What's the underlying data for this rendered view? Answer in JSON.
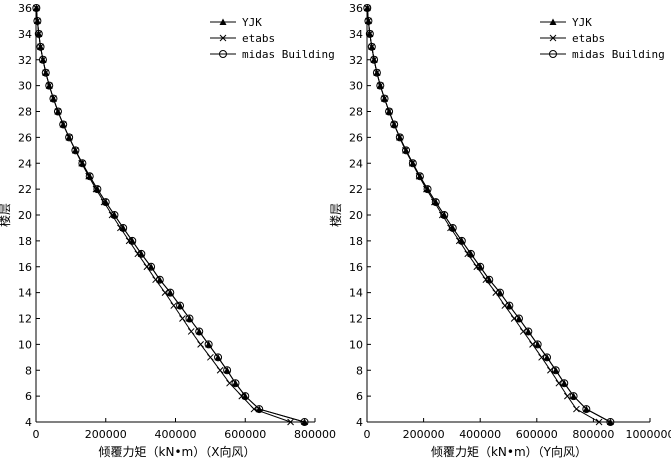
{
  "chart_data": [
    {
      "type": "line",
      "xlabel": "倾覆力矩（kN•m）（X向风）",
      "ylabel": "楼层",
      "xlim": [
        0,
        800000
      ],
      "ylim": [
        4,
        36
      ],
      "xticks": [
        "0",
        "200000",
        "400000",
        "600000",
        "800000"
      ],
      "yticks": [
        "4",
        "6",
        "8",
        "10",
        "12",
        "14",
        "16",
        "18",
        "20",
        "22",
        "24",
        "26",
        "28",
        "30",
        "32",
        "34",
        "36"
      ],
      "legend_position": "top-right",
      "grid": false,
      "y": [
        36,
        35,
        34,
        33,
        32,
        31,
        30,
        29,
        28,
        27,
        26,
        25,
        24,
        23,
        22,
        21,
        20,
        19,
        18,
        17,
        16,
        15,
        14,
        13,
        12,
        11,
        10,
        9,
        8,
        7,
        6,
        5,
        4
      ],
      "series": [
        {
          "name": "YJK",
          "marker": "triangle",
          "x": [
            1000,
            4000,
            8000,
            13000,
            20000,
            28000,
            38000,
            50000,
            63000,
            78000,
            95000,
            113000,
            133000,
            154000,
            176000,
            200000,
            225000,
            250000,
            276000,
            302000,
            330000,
            355000,
            385000,
            413000,
            440000,
            468000,
            495000,
            522000,
            548000,
            572000,
            600000,
            640000,
            770000
          ]
        },
        {
          "name": "etabs",
          "marker": "x",
          "x": [
            1000,
            4000,
            8000,
            13000,
            20000,
            28000,
            38000,
            50000,
            63000,
            78000,
            95000,
            113000,
            131000,
            151000,
            172000,
            195000,
            218000,
            242000,
            267000,
            292000,
            318000,
            343000,
            370000,
            395000,
            420000,
            445000,
            472000,
            500000,
            528000,
            555000,
            590000,
            625000,
            730000
          ]
        },
        {
          "name": "midas Building",
          "marker": "circle",
          "x": [
            1000,
            4000,
            8000,
            13000,
            20000,
            28000,
            38000,
            50000,
            63000,
            78000,
            95000,
            113000,
            133000,
            154000,
            176000,
            200000,
            225000,
            250000,
            276000,
            302000,
            330000,
            355000,
            385000,
            413000,
            440000,
            468000,
            495000,
            522000,
            548000,
            572000,
            600000,
            640000,
            770000
          ]
        }
      ]
    },
    {
      "type": "line",
      "xlabel": "倾覆力矩（kN•m）（Y向风）",
      "ylabel": "楼层",
      "xlim": [
        0,
        1000000
      ],
      "ylim": [
        4,
        36
      ],
      "xticks": [
        "0",
        "200000",
        "400000",
        "600000",
        "800000",
        "1000000"
      ],
      "yticks": [
        "4",
        "6",
        "8",
        "10",
        "12",
        "14",
        "16",
        "18",
        "20",
        "22",
        "24",
        "26",
        "28",
        "30",
        "32",
        "34",
        "36"
      ],
      "legend_position": "top-right",
      "grid": false,
      "y": [
        36,
        35,
        34,
        33,
        32,
        31,
        30,
        29,
        28,
        27,
        26,
        25,
        24,
        23,
        22,
        21,
        20,
        19,
        18,
        17,
        16,
        15,
        14,
        13,
        12,
        11,
        10,
        9,
        8,
        7,
        6,
        5,
        4
      ],
      "series": [
        {
          "name": "YJK",
          "marker": "triangle",
          "x": [
            1000,
            5000,
            10000,
            17000,
            25000,
            35000,
            47000,
            62000,
            78000,
            96000,
            116000,
            138000,
            162000,
            187000,
            214000,
            243000,
            273000,
            303000,
            335000,
            367000,
            400000,
            432000,
            470000,
            503000,
            537000,
            570000,
            603000,
            636000,
            667000,
            697000,
            730000,
            775000,
            860000
          ]
        },
        {
          "name": "etabs",
          "marker": "x",
          "x": [
            1000,
            5000,
            10000,
            17000,
            25000,
            35000,
            47000,
            62000,
            78000,
            96000,
            115000,
            136000,
            160000,
            184000,
            210000,
            238000,
            266000,
            295000,
            326000,
            356000,
            388000,
            420000,
            455000,
            487000,
            520000,
            552000,
            585000,
            617000,
            648000,
            678000,
            708000,
            740000,
            820000
          ]
        },
        {
          "name": "midas Building",
          "marker": "circle",
          "x": [
            1000,
            5000,
            10000,
            17000,
            25000,
            35000,
            47000,
            62000,
            78000,
            96000,
            116000,
            138000,
            162000,
            187000,
            214000,
            243000,
            273000,
            303000,
            335000,
            367000,
            400000,
            432000,
            470000,
            503000,
            537000,
            570000,
            603000,
            636000,
            667000,
            697000,
            730000,
            775000,
            860000
          ]
        }
      ]
    }
  ]
}
